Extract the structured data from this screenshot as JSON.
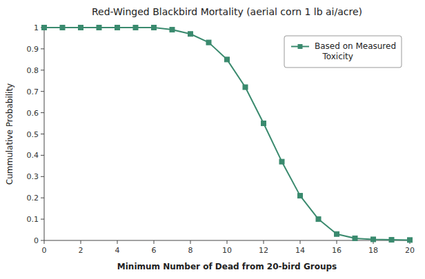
{
  "chart_data": {
    "type": "line",
    "title": "Red-Winged Blackbird Mortality (aerial corn 1 lb ai/acre)",
    "xlabel": "Minimum Number of Dead from 20-bird Groups",
    "ylabel": "Cummulative Probability",
    "x": [
      0,
      1,
      2,
      3,
      4,
      5,
      6,
      7,
      8,
      9,
      10,
      11,
      12,
      13,
      14,
      15,
      16,
      17,
      18,
      19,
      20
    ],
    "series": [
      {
        "name": "Based on Measured\n   Toxicity",
        "color": "#3a8a6e",
        "marker": "square",
        "values": [
          1.0,
          1.0,
          1.0,
          1.0,
          1.0,
          1.0,
          1.0,
          0.99,
          0.97,
          0.93,
          0.85,
          0.72,
          0.55,
          0.37,
          0.21,
          0.1,
          0.03,
          0.01,
          0.005,
          0.003,
          0.002
        ]
      }
    ],
    "xlim": [
      0,
      20
    ],
    "ylim": [
      0,
      1.0
    ],
    "xticks": [
      0,
      2,
      4,
      6,
      8,
      10,
      12,
      14,
      16,
      18,
      20
    ],
    "yticks": [
      0,
      0.1,
      0.2,
      0.3,
      0.4,
      0.5,
      0.6,
      0.7,
      0.8,
      0.9,
      1
    ],
    "grid": false,
    "legend": "upper right"
  }
}
